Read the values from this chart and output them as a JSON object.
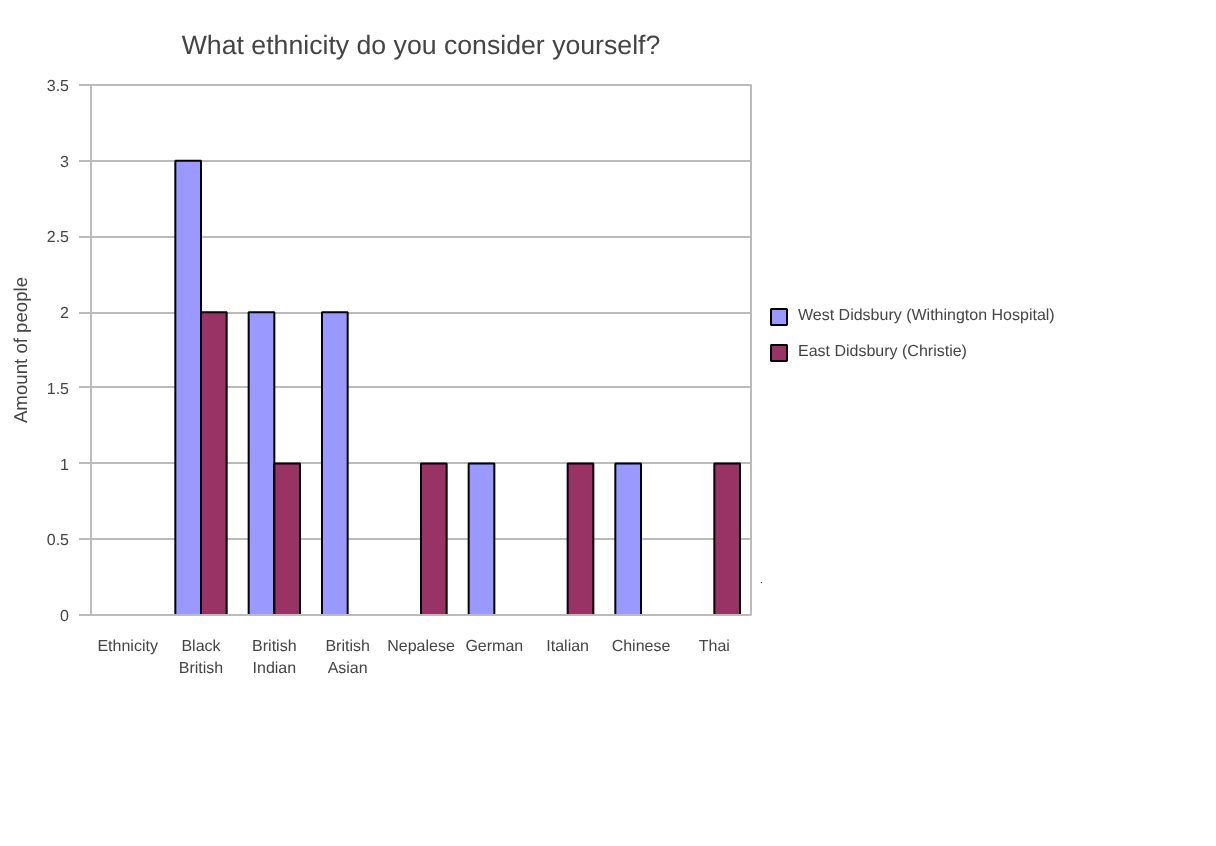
{
  "chart_data": {
    "type": "bar",
    "title": "What ethnicity do you consider yourself?",
    "ylabel": "Amount of people",
    "categories": [
      "Ethnicity",
      "Black British",
      "British Indian",
      "British Asian",
      "Nepalese",
      "German",
      "Italian",
      "Chinese",
      "Thai"
    ],
    "series": [
      {
        "name": "West Didsbury (Withington Hospital)",
        "color": "#9999ff",
        "values": [
          null,
          3,
          2,
          2,
          null,
          1,
          null,
          1,
          null
        ]
      },
      {
        "name": "East Didsbury (Christie)",
        "color": "#993366",
        "values": [
          null,
          2,
          1,
          null,
          1,
          null,
          1,
          null,
          1
        ]
      }
    ],
    "ylim": [
      0,
      3.5
    ],
    "yticks": [
      0,
      0.5,
      1,
      1.5,
      2,
      2.5,
      3,
      3.5
    ],
    "grid": "y",
    "legend": "right"
  }
}
